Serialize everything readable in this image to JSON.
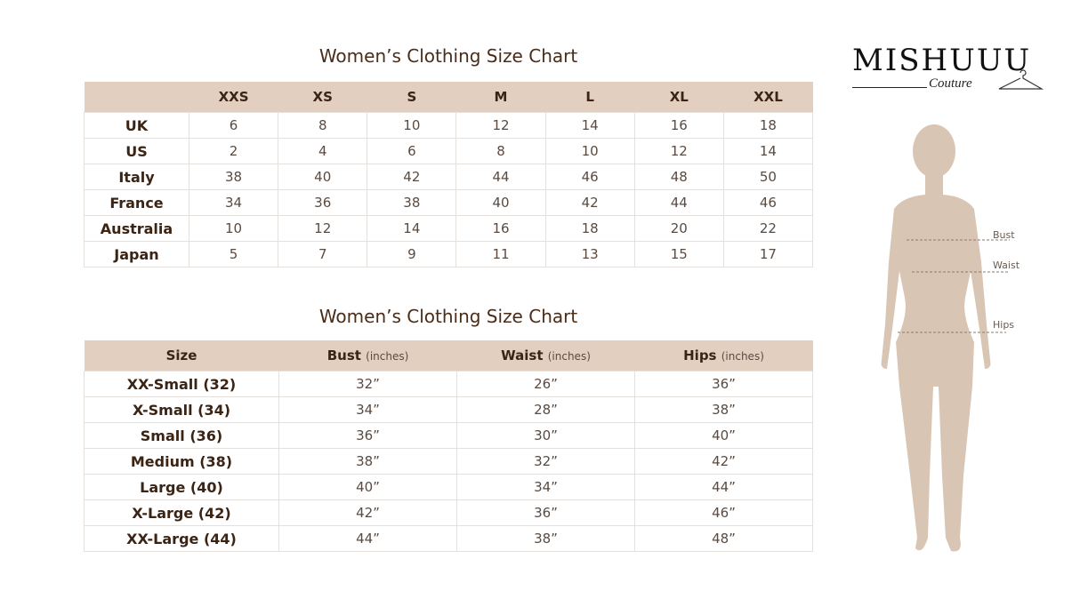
{
  "brand": {
    "name": "MISHUUU",
    "tagline": "Couture",
    "icon": "hanger-icon"
  },
  "colors": {
    "header_bg": "#e3cfc0",
    "text": "#3b2414",
    "silhouette": "#d9c5b4"
  },
  "conversion_table": {
    "title": "Women’s Clothing Size Chart",
    "columns": [
      "",
      "XXS",
      "XS",
      "S",
      "M",
      "L",
      "XL",
      "XXL"
    ],
    "rows": [
      {
        "label": "UK",
        "values": [
          "6",
          "8",
          "10",
          "12",
          "14",
          "16",
          "18"
        ]
      },
      {
        "label": "US",
        "values": [
          "2",
          "4",
          "6",
          "8",
          "10",
          "12",
          "14"
        ]
      },
      {
        "label": "Italy",
        "values": [
          "38",
          "40",
          "42",
          "44",
          "46",
          "48",
          "50"
        ]
      },
      {
        "label": "France",
        "values": [
          "34",
          "36",
          "38",
          "40",
          "42",
          "44",
          "46"
        ]
      },
      {
        "label": "Australia",
        "values": [
          "10",
          "12",
          "14",
          "16",
          "18",
          "20",
          "22"
        ]
      },
      {
        "label": "Japan",
        "values": [
          "5",
          "7",
          "9",
          "11",
          "13",
          "15",
          "17"
        ]
      }
    ]
  },
  "measurement_table": {
    "title": "Women’s Clothing Size Chart",
    "columns": [
      {
        "label": "Size",
        "unit": ""
      },
      {
        "label": "Bust",
        "unit": "(inches)"
      },
      {
        "label": "Waist",
        "unit": "(inches)"
      },
      {
        "label": "Hips",
        "unit": "(inches)"
      }
    ],
    "rows": [
      {
        "label": "XX-Small (32)",
        "values": [
          "32”",
          "26”",
          "36”"
        ]
      },
      {
        "label": "X-Small (34)",
        "values": [
          "34”",
          "28”",
          "38”"
        ]
      },
      {
        "label": "Small (36)",
        "values": [
          "36”",
          "30”",
          "40”"
        ]
      },
      {
        "label": "Medium (38)",
        "values": [
          "38”",
          "32”",
          "42”"
        ]
      },
      {
        "label": "Large (40)",
        "values": [
          "40”",
          "34”",
          "44”"
        ]
      },
      {
        "label": "X-Large (42)",
        "values": [
          "42”",
          "36”",
          "46”"
        ]
      },
      {
        "label": "XX-Large (44)",
        "values": [
          "44”",
          "38”",
          "48”"
        ]
      }
    ]
  },
  "figure": {
    "labels": {
      "bust": "Bust",
      "waist": "Waist",
      "hips": "Hips"
    }
  }
}
